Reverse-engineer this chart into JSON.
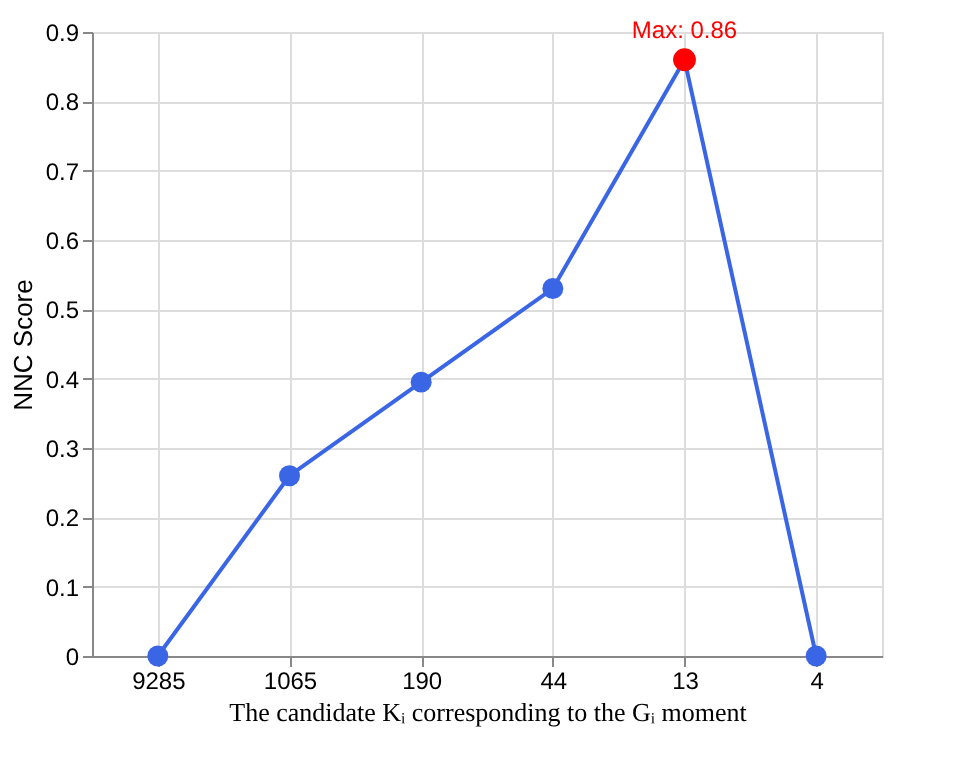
{
  "chart_data": {
    "type": "line",
    "xlabel": "The candidate Kᵢ corresponding to the Gᵢ moment",
    "ylabel": "NNC Score",
    "categories": [
      "9285",
      "1065",
      "190",
      "44",
      "13",
      "4"
    ],
    "series": [
      {
        "color": "#3a66e6",
        "values": [
          0,
          0.26,
          0.395,
          0.53,
          0.86,
          0
        ]
      },
      {
        "type": "scatter",
        "color": "#ff0000",
        "x": [
          "13"
        ],
        "values": [
          0.86
        ]
      }
    ],
    "ylim": [
      0,
      0.9
    ],
    "yticks": [
      0,
      0.1,
      0.2,
      0.3,
      0.4,
      0.5,
      0.6,
      0.7,
      0.8,
      0.9
    ],
    "grid": true,
    "marker": "circle",
    "line_style": "solid",
    "annotations": [
      {
        "text": "Max: 0.86",
        "x": "13",
        "y": 0.86
      }
    ]
  }
}
